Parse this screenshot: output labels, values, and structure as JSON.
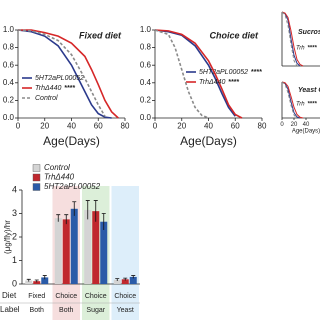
{
  "chart_data": [
    {
      "type": "line",
      "title": "Fixed diet",
      "xlabel": "Age(Days)",
      "xlim": [
        0,
        80
      ],
      "ylim": [
        0,
        1
      ],
      "xticks": [
        0,
        20,
        40,
        60,
        80
      ],
      "yticks": [
        {
          "value": 0,
          "label": "0.0"
        },
        {
          "value": 0.2,
          "label": "0.2"
        },
        {
          "value": 0.4,
          "label": "0.4"
        },
        {
          "value": 0.6,
          "label": "0.6"
        },
        {
          "value": 0.8,
          "label": "0.8"
        },
        {
          "value": 1,
          "label": "1.0"
        }
      ],
      "series": [
        {
          "name": "5HT2aPL00052",
          "color": "#2b3a8c",
          "x": [
            0,
            10,
            20,
            30,
            40,
            45,
            50,
            55,
            60,
            65,
            70
          ],
          "values": [
            1,
            0.98,
            0.93,
            0.82,
            0.6,
            0.45,
            0.3,
            0.15,
            0.05,
            0.01,
            0
          ]
        },
        {
          "name": "TrhΔ440",
          "significance": "****",
          "color": "#d62728",
          "x": [
            0,
            10,
            20,
            30,
            40,
            50,
            55,
            60,
            65,
            70,
            75
          ],
          "values": [
            1,
            1,
            0.97,
            0.93,
            0.85,
            0.7,
            0.55,
            0.38,
            0.2,
            0.07,
            0
          ]
        },
        {
          "name": "Control",
          "color": "#8a8a8a",
          "dashed": true,
          "x": [
            0,
            10,
            20,
            30,
            40,
            50,
            55,
            60,
            65
          ],
          "values": [
            1,
            0.99,
            0.95,
            0.88,
            0.72,
            0.45,
            0.3,
            0.15,
            0.02
          ]
        }
      ]
    },
    {
      "type": "line",
      "title": "Choice diet",
      "xlabel": "Age(Days)",
      "xlim": [
        0,
        80
      ],
      "ylim": [
        0,
        1
      ],
      "xticks": [
        0,
        20,
        40,
        60,
        80
      ],
      "yticks": [
        {
          "value": 0,
          "label": "0.0"
        },
        {
          "value": 0.2,
          "label": "0.2"
        },
        {
          "value": 0.4,
          "label": "0.4"
        },
        {
          "value": 0.6,
          "label": "0.6"
        },
        {
          "value": 0.8,
          "label": "0.8"
        },
        {
          "value": 1,
          "label": "1.0"
        }
      ],
      "series": [
        {
          "name": "5HT2aPL00052",
          "significance": "****",
          "color": "#2b3a8c",
          "x": [
            0,
            10,
            20,
            30,
            40,
            45,
            50,
            55,
            60
          ],
          "values": [
            1,
            0.98,
            0.94,
            0.82,
            0.6,
            0.45,
            0.28,
            0.12,
            0.02
          ]
        },
        {
          "name": "TrhΔ440",
          "significance": "****",
          "color": "#d62728",
          "x": [
            0,
            10,
            20,
            30,
            40,
            45,
            50,
            55,
            60,
            65
          ],
          "values": [
            1,
            0.99,
            0.95,
            0.85,
            0.65,
            0.5,
            0.33,
            0.15,
            0.04,
            0
          ]
        },
        {
          "color": "#8a8a8a",
          "dashed": true,
          "x": [
            0,
            10,
            15,
            20,
            25,
            30,
            35,
            40
          ],
          "values": [
            1,
            0.95,
            0.8,
            0.55,
            0.3,
            0.12,
            0.03,
            0
          ]
        }
      ]
    },
    {
      "type": "line",
      "title": "Sucrose Only",
      "xlim": [
        0,
        80
      ],
      "ylim": [
        0,
        1
      ],
      "series": [
        {
          "color": "#2b3a8c",
          "x": [
            0,
            5,
            10,
            15,
            20,
            25,
            30
          ],
          "values": [
            1,
            0.97,
            0.85,
            0.5,
            0.2,
            0.05,
            0
          ]
        },
        {
          "name": "Trh",
          "significance": "****",
          "color": "#d62728",
          "x": [
            0,
            5,
            10,
            15,
            20,
            25,
            30,
            35
          ],
          "values": [
            1,
            0.98,
            0.9,
            0.65,
            0.35,
            0.12,
            0.03,
            0
          ]
        },
        {
          "color": "#8a8a8a",
          "dashed": true,
          "x": [
            0,
            5,
            10,
            15,
            20,
            25
          ],
          "values": [
            1,
            0.95,
            0.75,
            0.4,
            0.1,
            0
          ]
        }
      ]
    },
    {
      "type": "line",
      "title": "Yeast Only",
      "xlabel": "Age(Days)",
      "xlim": [
        0,
        80
      ],
      "ylim": [
        0,
        1
      ],
      "xticks": [
        0,
        20,
        40
      ],
      "series": [
        {
          "color": "#2b3a8c",
          "x": [
            0,
            5,
            10,
            15,
            20,
            25,
            30
          ],
          "values": [
            1,
            0.96,
            0.8,
            0.45,
            0.15,
            0.03,
            0
          ]
        },
        {
          "name": "Trh",
          "significance": "****",
          "color": "#d62728",
          "x": [
            0,
            5,
            10,
            15,
            20,
            25,
            30,
            35
          ],
          "values": [
            1,
            0.98,
            0.88,
            0.6,
            0.3,
            0.1,
            0.02,
            0
          ]
        },
        {
          "color": "#8a8a8a",
          "dashed": true,
          "x": [
            0,
            5,
            10,
            15,
            20,
            25
          ],
          "values": [
            1,
            0.94,
            0.7,
            0.35,
            0.08,
            0
          ]
        }
      ]
    },
    {
      "type": "bar",
      "ylabel": "(μg/fly)/hr",
      "ylim": [
        0,
        4
      ],
      "yticks": [
        0,
        1,
        2,
        3,
        4
      ],
      "row_labels": [
        "Diet",
        "Label"
      ],
      "categories": [
        "Fixed",
        "Choice",
        "Choice",
        "Choice"
      ],
      "category_sublabels": [
        "Both",
        "Both",
        "Sugar",
        "Yeast"
      ],
      "category_colors": [
        null,
        "#f6dede",
        "#dcefd9",
        "#ddeefa"
      ],
      "series": [
        {
          "name": "Control",
          "color": "#d4d4d4",
          "values": [
            0.15,
            2.8,
            3.15,
            0.18
          ],
          "errors": [
            0.05,
            0.15,
            0.4,
            0.05
          ]
        },
        {
          "name": "TrhΔ440",
          "color": "#c0282e",
          "values": [
            0.12,
            2.75,
            3.1,
            0.2
          ],
          "errors": [
            0.05,
            0.2,
            0.45,
            0.05
          ]
        },
        {
          "name": "5HT2aPL00052",
          "color": "#2a5ba8",
          "values": [
            0.28,
            3.2,
            2.65,
            0.3
          ],
          "errors": [
            0.08,
            0.3,
            0.35,
            0.06
          ]
        }
      ]
    }
  ]
}
